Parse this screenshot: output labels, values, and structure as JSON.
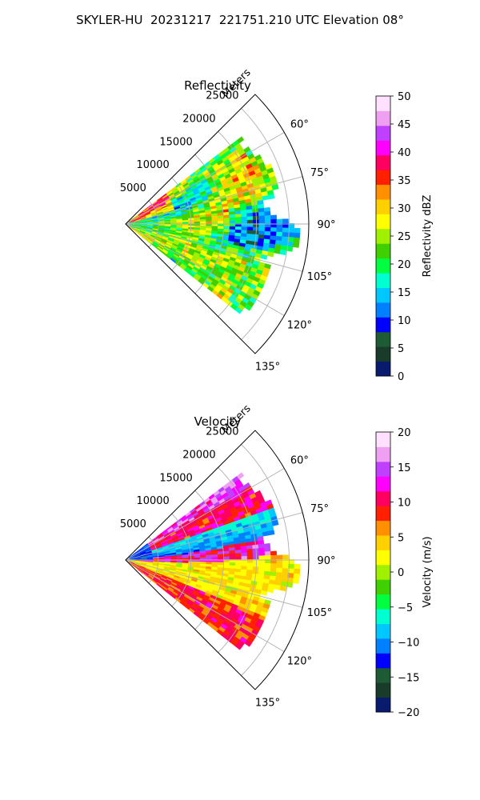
{
  "title": "SKYLER-HU  20231217  221751.210 UTC Elevation 08°",
  "colors": {
    "reflectivity_cmap": [
      "#0a1a6e",
      "#1a3a2a",
      "#1e5a34",
      "#0000ff",
      "#0080ff",
      "#00c8ff",
      "#00ffd0",
      "#00ff40",
      "#40d000",
      "#a0f000",
      "#ffff00",
      "#ffd000",
      "#ff9000",
      "#ff2000",
      "#ff0060",
      "#ff00ff",
      "#c040ff",
      "#f0a0f0",
      "#ffe0ff"
    ],
    "velocity_cmap": [
      "#0a1a6e",
      "#1a3a2a",
      "#1e5a34",
      "#0000ff",
      "#0080ff",
      "#00c8ff",
      "#00ffd0",
      "#00ff40",
      "#40d000",
      "#a0f000",
      "#ffff00",
      "#ffd000",
      "#ff9000",
      "#ff2000",
      "#ff0060",
      "#ff00ff",
      "#c040ff",
      "#f0a0f0",
      "#ffe0ff"
    ]
  },
  "chart_data": [
    {
      "type": "heatmap",
      "subtype": "polar-sector (radar PPI)",
      "title": "Reflectivity",
      "radial_label": "Meters",
      "radial_ticks": [
        5000,
        10000,
        15000,
        20000,
        25000
      ],
      "radial_tick_labels": [
        "5000",
        "10000",
        "15000",
        "20000",
        "25000"
      ],
      "rmax": 28000,
      "theta_range_deg": [
        45,
        135
      ],
      "theta_ticks_deg": [
        60,
        75,
        90,
        105,
        120,
        135
      ],
      "theta_tick_labels": [
        "60°",
        "75°",
        "90°",
        "105°",
        "120°",
        "135°"
      ],
      "data_coverage": {
        "theta_deg": [
          53,
          127
        ],
        "r_max_m": 24000
      },
      "grid": true,
      "colorbar": {
        "label": "Reflectivity dBZ",
        "vmin": 0,
        "vmax": 50,
        "ticks": [
          0,
          5,
          10,
          15,
          20,
          25,
          30,
          35,
          40,
          45,
          50
        ],
        "tick_labels": [
          "0",
          "5",
          "10",
          "15",
          "20",
          "25",
          "30",
          "35",
          "40",
          "45",
          "50"
        ]
      }
    },
    {
      "type": "heatmap",
      "subtype": "polar-sector (radar PPI)",
      "title": "Velocity",
      "radial_label": "Meters",
      "radial_ticks": [
        5000,
        10000,
        15000,
        20000,
        25000
      ],
      "radial_tick_labels": [
        "5000",
        "10000",
        "15000",
        "20000",
        "25000"
      ],
      "rmax": 28000,
      "theta_range_deg": [
        45,
        135
      ],
      "theta_ticks_deg": [
        60,
        75,
        90,
        105,
        120,
        135
      ],
      "theta_tick_labels": [
        "60°",
        "75°",
        "90°",
        "105°",
        "120°",
        "135°"
      ],
      "data_coverage": {
        "theta_deg": [
          53,
          127
        ],
        "r_max_m": 24000
      },
      "grid": true,
      "colorbar": {
        "label": "Velocity (m/s)",
        "vmin": -20,
        "vmax": 20,
        "ticks": [
          -20,
          -15,
          -10,
          -5,
          0,
          5,
          10,
          15,
          20
        ],
        "tick_labels": [
          "−20",
          "−15",
          "−10",
          "−5",
          "0",
          "5",
          "10",
          "15",
          "20"
        ]
      }
    }
  ]
}
